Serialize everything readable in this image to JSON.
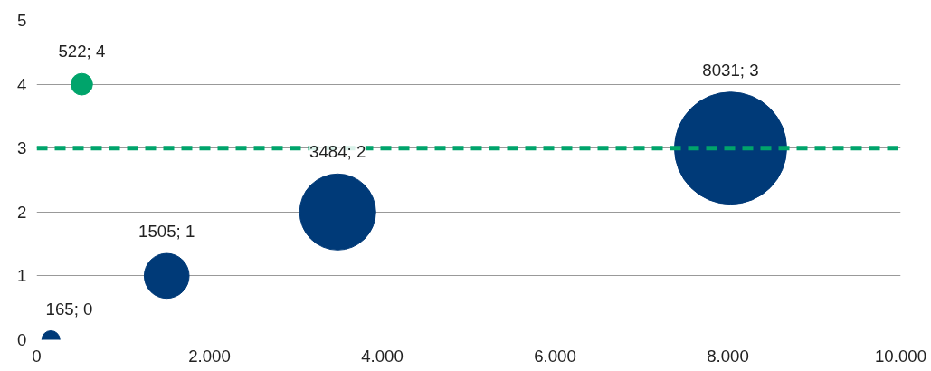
{
  "chart_data": {
    "type": "bubble",
    "x": [
      165,
      1505,
      3484,
      8031,
      522
    ],
    "values": [
      0,
      1,
      2,
      3,
      4
    ],
    "sizes": [
      0.026,
      0.16,
      0.46,
      1,
      0.037
    ],
    "colors": [
      "#003a78",
      "#003a78",
      "#003a78",
      "#003a78",
      "#00a46b"
    ],
    "value_labels": [
      "165; 0",
      "1505; 1",
      "3484; 2",
      "8031; 3",
      "522; 4"
    ],
    "xlim": [
      0,
      10000
    ],
    "xticks": [
      0,
      {
        "value": 2000,
        "label": "2.000"
      },
      {
        "value": 4000,
        "label": "4.000"
      },
      {
        "value": 6000,
        "label": "6.000"
      },
      {
        "value": 8000,
        "label": "8.000"
      },
      {
        "value": 10000,
        "label": "10.000"
      }
    ],
    "ylim": [
      0,
      5
    ],
    "yticks": [
      0,
      1,
      2,
      3,
      4,
      5
    ],
    "grid": "y",
    "ref_lines": [
      {
        "axis": "y",
        "value": 3,
        "color": "#00a46b",
        "line_style": "dashed"
      }
    ]
  }
}
